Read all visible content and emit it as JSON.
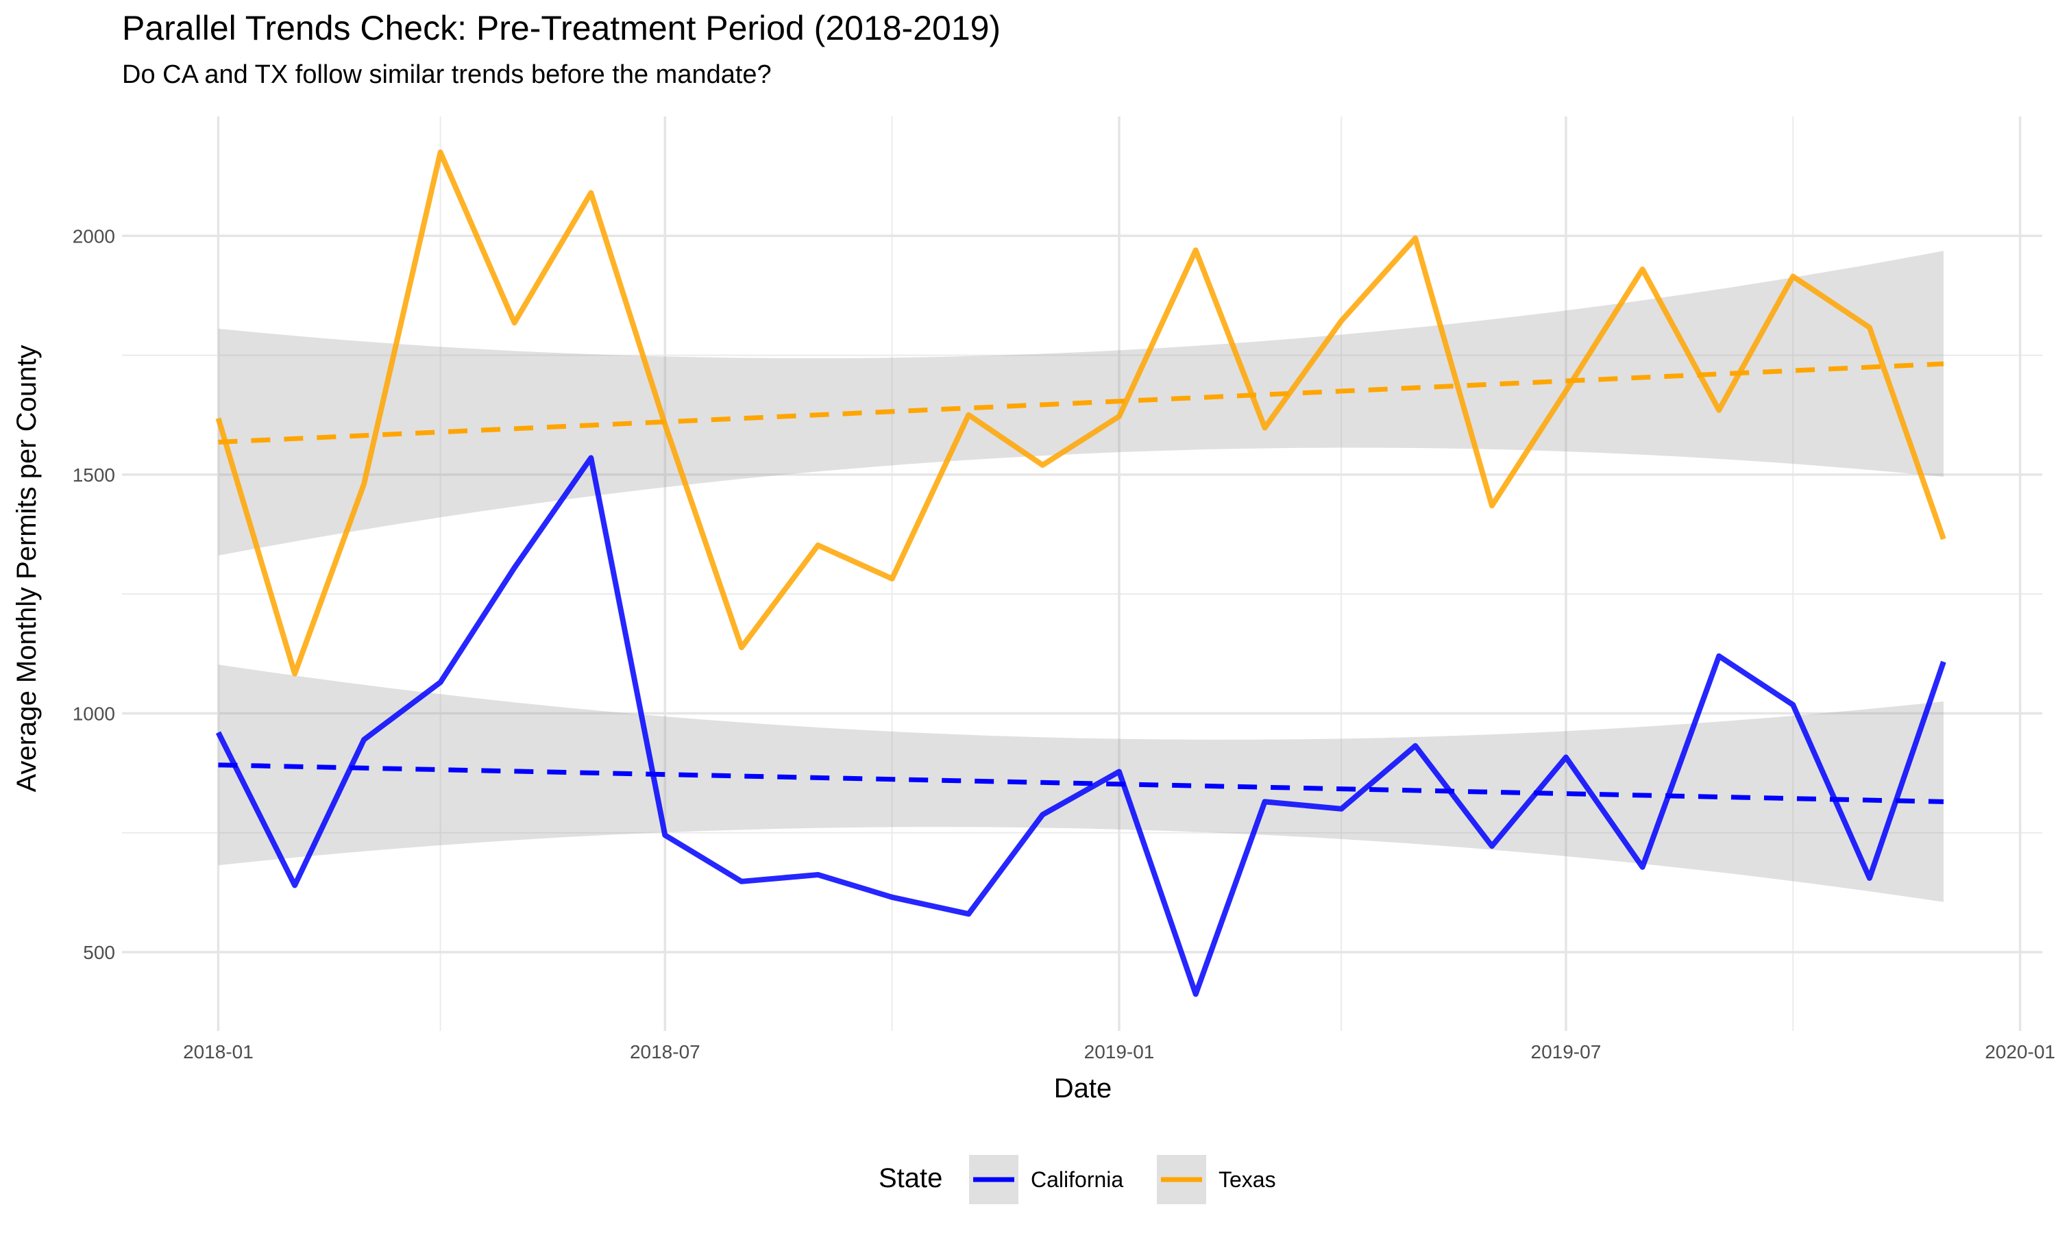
{
  "chart_data": {
    "type": "line",
    "title": "Parallel Trends Check: Pre-Treatment Period (2018-2019)",
    "subtitle": "Do CA and TX follow similar trends before the mandate?",
    "xlabel": "Date",
    "ylabel": "Average Monthly Permits per County",
    "x_ticks": [
      "2018-01",
      "2018-07",
      "2019-01",
      "2019-07",
      "2020-01"
    ],
    "y_ticks": [
      500,
      1000,
      1500,
      2000
    ],
    "ylim": [
      335,
      2250
    ],
    "grid": true,
    "legend": {
      "title": "State",
      "position": "bottom"
    },
    "x": [
      "2018-01",
      "2018-02",
      "2018-03",
      "2018-04",
      "2018-05",
      "2018-06",
      "2018-07",
      "2018-08",
      "2018-09",
      "2018-10",
      "2018-11",
      "2018-12",
      "2019-01",
      "2019-02",
      "2019-03",
      "2019-04",
      "2019-05",
      "2019-06",
      "2019-07",
      "2019-08",
      "2019-09",
      "2019-10",
      "2019-11",
      "2019-12"
    ],
    "series": [
      {
        "name": "California",
        "color": "#0000FF",
        "values": [
          960,
          640,
          945,
          1065,
          1305,
          1535,
          745,
          648,
          662,
          615,
          580,
          788,
          878,
          412,
          815,
          800,
          932,
          722,
          908,
          678,
          1120,
          1018,
          655,
          1108
        ],
        "trend": [
          892,
          815
        ],
        "ci_lower": [
          685,
          605
        ],
        "ci_upper": [
          1105,
          1025
        ]
      },
      {
        "name": "Texas",
        "color": "#FFA500",
        "values": [
          1618,
          1083,
          1480,
          2175,
          1818,
          2090,
          1605,
          1138,
          1352,
          1282,
          1625,
          1520,
          1622,
          1970,
          1598,
          1822,
          1995,
          1435,
          1675,
          1930,
          1635,
          1915,
          1808,
          1365
        ],
        "trend": [
          1568,
          1732
        ],
        "ci_lower": [
          1330,
          1495
        ],
        "ci_upper": [
          1805,
          1968
        ]
      }
    ]
  }
}
